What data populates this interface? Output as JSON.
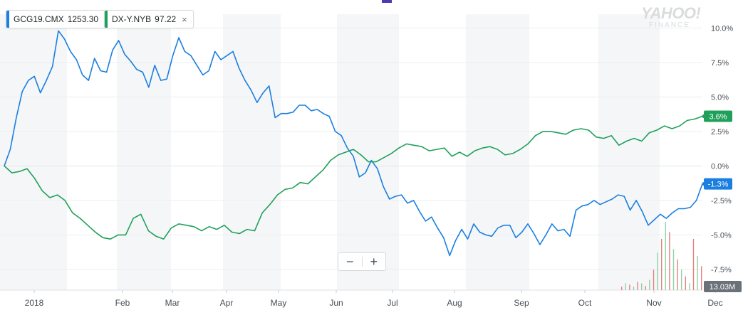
{
  "legend": [
    {
      "symbol": "GCG19.CMX",
      "value": "1253.30",
      "color": "#1a7fe0"
    },
    {
      "symbol": "DX-Y.NYB",
      "value": "97.22",
      "color": "#1fa05a",
      "close": "×"
    }
  ],
  "brand": {
    "line1": "YAHOO!",
    "line2": "FINANCE"
  },
  "zoom": {
    "minus": "−",
    "plus": "+"
  },
  "volume_label": "13.03M",
  "chart_data": {
    "type": "line",
    "x_labels": [
      "2018",
      "Feb",
      "Mar",
      "Apr",
      "May",
      "Jun",
      "Jul",
      "Aug",
      "Sep",
      "Oct",
      "Nov",
      "Dec"
    ],
    "y_ticks": [
      "10.0%",
      "7.5%",
      "5.0%",
      "2.5%",
      "0.0%",
      "-2.5%",
      "-5.0%",
      "-7.5%"
    ],
    "ylim": [
      -9,
      11
    ],
    "series": [
      {
        "name": "GCG19.CMX",
        "color": "#1a7fe0",
        "end_label": "-1.3%",
        "values": [
          0,
          1.2,
          3.5,
          5.4,
          6.2,
          6.5,
          5.3,
          6.2,
          7.2,
          9.8,
          9.2,
          8.3,
          7.7,
          6.6,
          6.2,
          7.8,
          6.9,
          6.8,
          8.4,
          9.1,
          8.1,
          7.6,
          7.0,
          6.8,
          5.7,
          7.3,
          6.2,
          6.3,
          8.0,
          9.3,
          8.3,
          8.0,
          7.3,
          6.6,
          6.9,
          8.3,
          7.7,
          8.0,
          8.3,
          7.1,
          6.2,
          5.5,
          4.6,
          5.3,
          5.8,
          3.5,
          3.8,
          3.8,
          3.9,
          4.4,
          4.4,
          4.0,
          4.1,
          3.8,
          3.6,
          2.5,
          2.2,
          1.3,
          0.7,
          -0.8,
          -0.5,
          0.4,
          -0.2,
          -1.5,
          -2.4,
          -2.2,
          -2.1,
          -2.7,
          -2.5,
          -3.3,
          -4.0,
          -3.7,
          -4.5,
          -5.2,
          -6.5,
          -5.4,
          -4.6,
          -5.3,
          -4.2,
          -4.8,
          -5.0,
          -5.1,
          -4.5,
          -4.3,
          -4.3,
          -5.2,
          -4.8,
          -4.2,
          -4.9,
          -5.7,
          -5.0,
          -4.2,
          -4.7,
          -4.6,
          -5.1,
          -3.2,
          -2.9,
          -2.8,
          -2.5,
          -2.8,
          -2.6,
          -2.4,
          -2.1,
          -2.2,
          -3.2,
          -2.5,
          -3.3,
          -4.3,
          -3.9,
          -3.5,
          -3.8,
          -3.4,
          -3.1,
          -3.1,
          -3.0,
          -2.5,
          -1.3
        ]
      },
      {
        "name": "DX-Y.NYB",
        "color": "#1fa05a",
        "end_label": "3.6%",
        "values": [
          0,
          -0.5,
          -0.4,
          -0.2,
          -0.9,
          -1.8,
          -2.3,
          -2.1,
          -2.5,
          -3.4,
          -3.8,
          -4.3,
          -4.8,
          -5.2,
          -5.3,
          -5.0,
          -5.0,
          -3.8,
          -3.5,
          -4.7,
          -5.1,
          -5.3,
          -4.5,
          -4.2,
          -4.3,
          -4.4,
          -4.7,
          -4.4,
          -4.6,
          -4.3,
          -4.8,
          -4.9,
          -4.6,
          -4.7,
          -3.4,
          -2.8,
          -2.1,
          -1.7,
          -1.6,
          -1.2,
          -1.3,
          -0.8,
          -0.3,
          0.4,
          0.8,
          1.0,
          1.2,
          0.8,
          0.3,
          0.3,
          0.6,
          0.9,
          1.3,
          1.6,
          1.5,
          1.4,
          1.1,
          1.2,
          1.3,
          0.7,
          1.0,
          0.7,
          1.1,
          1.3,
          1.4,
          1.2,
          0.8,
          0.9,
          1.2,
          1.6,
          2.2,
          2.5,
          2.5,
          2.4,
          2.3,
          2.6,
          2.7,
          2.6,
          2.1,
          2.0,
          2.2,
          1.5,
          1.8,
          2.0,
          1.8,
          2.4,
          2.6,
          2.9,
          2.7,
          2.9,
          3.3,
          3.4,
          3.6
        ]
      }
    ],
    "volume_bars": [
      0.05,
      0.1,
      0.08,
      0.05,
      0.12,
      0.1,
      0.06,
      0.15,
      0.3,
      0.55,
      0.75,
      1.0,
      0.85,
      0.6,
      0.45,
      0.3,
      0.2,
      0.1,
      0.75,
      0.5,
      0.35
    ]
  }
}
